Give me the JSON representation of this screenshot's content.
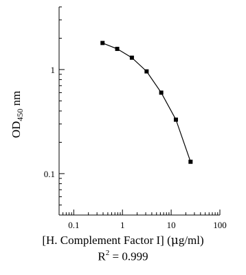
{
  "chart_data": {
    "type": "line",
    "x_scale": "log",
    "y_scale": "log",
    "xlim": [
      0.05,
      100
    ],
    "ylim": [
      0.04,
      4
    ],
    "x_ticks": [
      0.1,
      1,
      10,
      100
    ],
    "x_tick_labels": [
      "0.1",
      "1",
      "10",
      "100"
    ],
    "y_ticks": [
      0.1,
      1
    ],
    "y_tick_labels": [
      "0.1",
      "1"
    ],
    "ylabel_main": "OD",
    "ylabel_sub": "450",
    "ylabel_unit": "nm",
    "xlabel_prefix": "[H. Complement Factor I] (",
    "xlabel_mu": "μ",
    "xlabel_suffix": "g/ml)",
    "r2_label": "R",
    "r2_exp": "2",
    "r2_value": "= 0.999",
    "series": [
      {
        "x": [
          0.39,
          0.78,
          1.56,
          3.13,
          6.25,
          12.5,
          25
        ],
        "y": [
          1.8,
          1.58,
          1.3,
          0.96,
          0.6,
          0.33,
          0.13
        ]
      }
    ],
    "colors": {
      "line": "#000000",
      "marker": "#000000",
      "axis": "#000000"
    }
  }
}
